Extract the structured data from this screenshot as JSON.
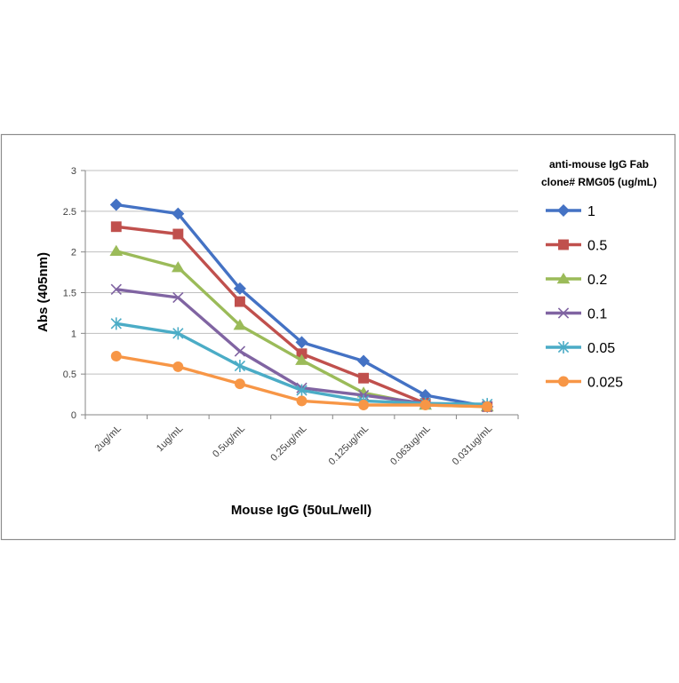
{
  "chart_data": {
    "type": "line",
    "title": "",
    "xlabel": "Mouse IgG (50uL/well)",
    "ylabel": "Abs (405nm)",
    "categories": [
      "2ug/mL",
      "1ug/mL",
      "0.5ug/mL",
      "0.25ug/mL",
      "0.125ug/mL",
      "0.063ug/mL",
      "0.031ug/mL"
    ],
    "ylim": [
      0,
      3
    ],
    "yticks": [
      "0",
      "0.5",
      "1",
      "1.5",
      "2",
      "2.5",
      "3"
    ],
    "grid": true,
    "legend_position": "right",
    "legend_title_lines": [
      "anti-mouse IgG Fab",
      "clone# RMG05 (ug/mL)"
    ],
    "series": [
      {
        "name": "1",
        "color": "#4472C4",
        "marker": "diamond",
        "values": [
          2.58,
          2.47,
          1.55,
          0.89,
          0.66,
          0.24,
          0.1
        ]
      },
      {
        "name": "0.5",
        "color": "#C0504D",
        "marker": "square",
        "values": [
          2.31,
          2.22,
          1.39,
          0.75,
          0.45,
          0.14,
          0.1
        ]
      },
      {
        "name": "0.2",
        "color": "#9BBB59",
        "marker": "triangle",
        "values": [
          2.01,
          1.81,
          1.1,
          0.67,
          0.27,
          0.12,
          0.1
        ]
      },
      {
        "name": "0.1",
        "color": "#8064A2",
        "marker": "x",
        "values": [
          1.54,
          1.44,
          0.78,
          0.33,
          0.24,
          0.14,
          0.1
        ]
      },
      {
        "name": "0.05",
        "color": "#4BACC6",
        "marker": "asterisk",
        "values": [
          1.12,
          1.0,
          0.6,
          0.3,
          0.17,
          0.14,
          0.13
        ]
      },
      {
        "name": "0.025",
        "color": "#F79646",
        "marker": "circle",
        "values": [
          0.72,
          0.59,
          0.38,
          0.17,
          0.12,
          0.12,
          0.1
        ]
      }
    ]
  }
}
